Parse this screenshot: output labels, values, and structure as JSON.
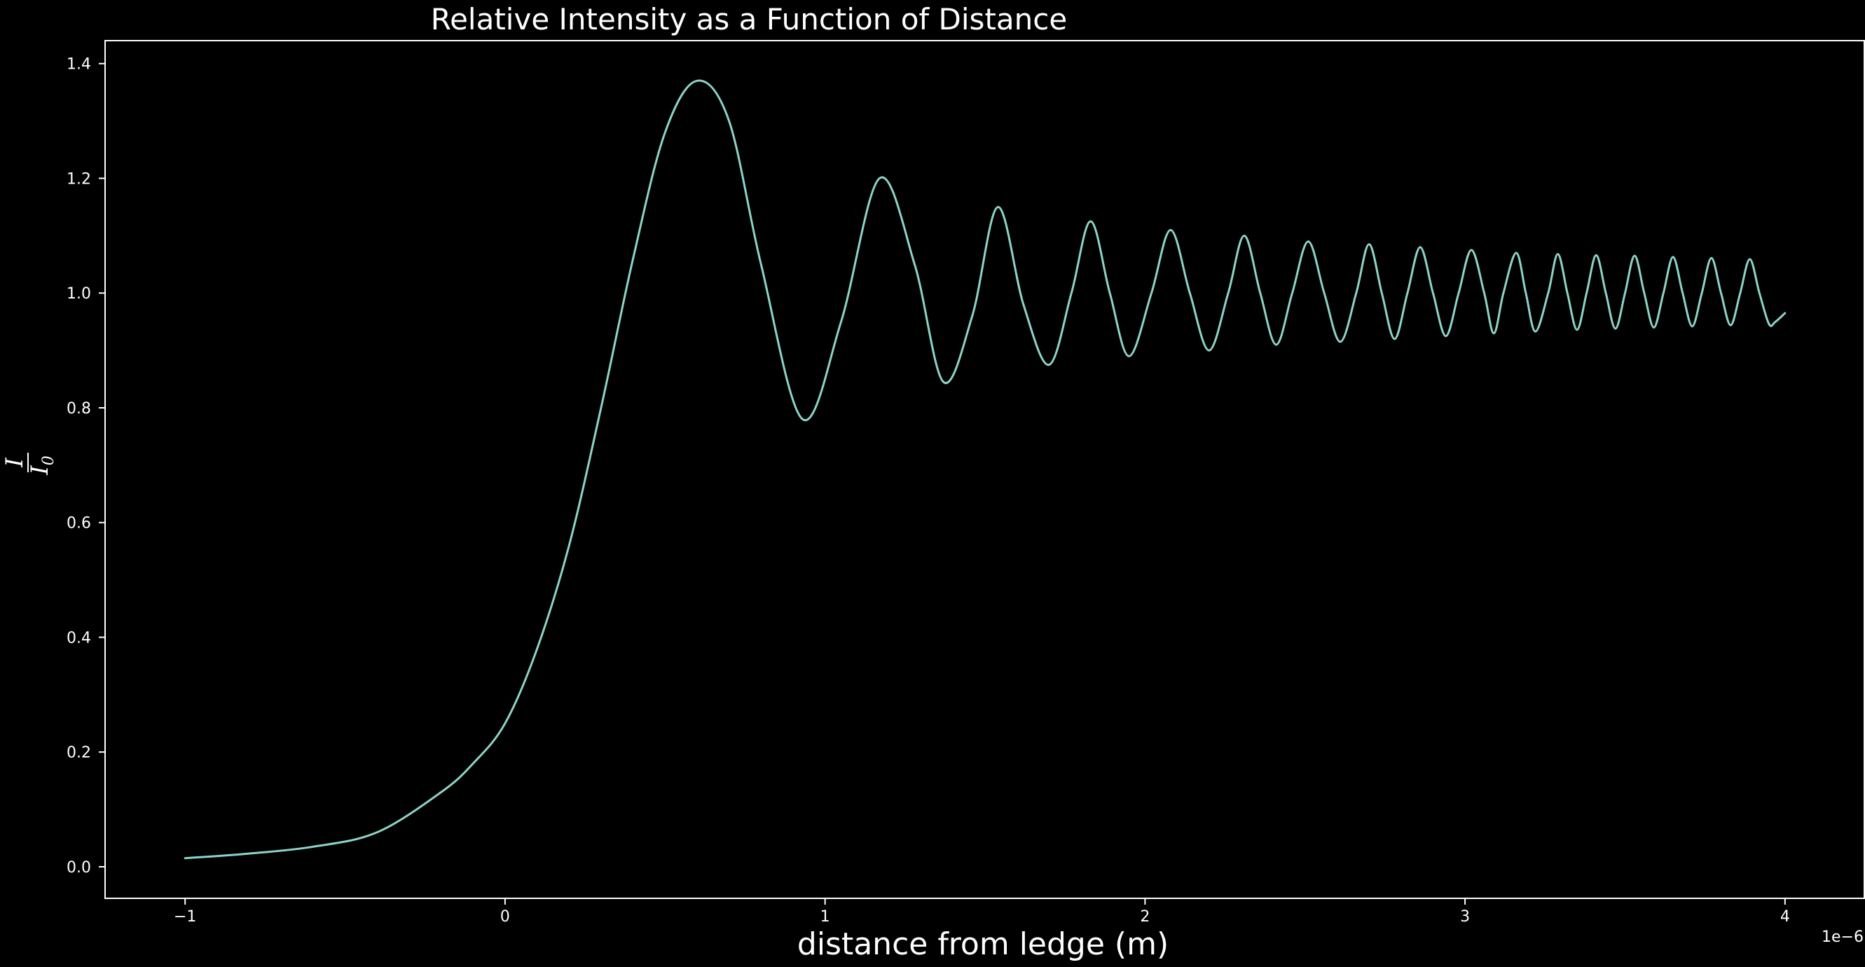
{
  "chart_data": {
    "type": "line",
    "title": "Relative Intensity as a Function of Distance",
    "xlabel": "distance from ledge (m)",
    "ylabel_numerator": "I",
    "ylabel_denominator": "I",
    "ylabel_denominator_subscript": "0",
    "x_offset_label": "1e−6",
    "xlim": [
      -1.25,
      4.25
    ],
    "ylim": [
      -0.055,
      1.44
    ],
    "xticks": [
      {
        "value": -1,
        "label": "−1"
      },
      {
        "value": 0,
        "label": "0"
      },
      {
        "value": 1,
        "label": "1"
      },
      {
        "value": 2,
        "label": "2"
      },
      {
        "value": 3,
        "label": "3"
      },
      {
        "value": 4,
        "label": "4"
      }
    ],
    "yticks": [
      {
        "value": 0.0,
        "label": "0.0"
      },
      {
        "value": 0.2,
        "label": "0.2"
      },
      {
        "value": 0.4,
        "label": "0.4"
      },
      {
        "value": 0.6,
        "label": "0.6"
      },
      {
        "value": 0.8,
        "label": "0.8"
      },
      {
        "value": 1.0,
        "label": "1.0"
      },
      {
        "value": 1.2,
        "label": "1.2"
      },
      {
        "value": 1.4,
        "label": "1.4"
      }
    ],
    "grid": false,
    "line_color": "#8dd3c7",
    "background_color": "#000000",
    "text_color": "#ffffff",
    "series": [
      {
        "x": [
          -1.0,
          -0.8,
          -0.6,
          -0.4,
          -0.2,
          -0.1,
          0.0,
          0.1,
          0.2,
          0.3,
          0.4,
          0.5,
          0.6,
          0.7,
          0.8,
          0.93,
          1.05,
          1.17,
          1.28,
          1.37,
          1.46,
          1.54,
          1.62,
          1.7,
          1.77,
          1.83,
          1.89,
          1.95,
          2.02,
          2.08,
          2.14,
          2.2,
          2.26,
          2.31,
          2.36,
          2.41,
          2.46,
          2.51,
          2.56,
          2.61,
          2.66,
          2.7,
          2.74,
          2.78,
          2.82,
          2.86,
          2.9,
          2.94,
          2.98,
          3.02,
          3.06,
          3.09,
          3.12,
          3.16,
          3.19,
          3.22,
          3.26,
          3.29,
          3.32,
          3.35,
          3.38,
          3.41,
          3.44,
          3.47,
          3.5,
          3.53,
          3.56,
          3.59,
          3.62,
          3.65,
          3.68,
          3.71,
          3.74,
          3.77,
          3.8,
          3.83,
          3.86,
          3.89,
          3.92,
          3.95,
          3.97,
          4.0
        ],
        "y": [
          0.015,
          0.023,
          0.035,
          0.06,
          0.13,
          0.18,
          0.25,
          0.38,
          0.56,
          0.8,
          1.06,
          1.28,
          1.37,
          1.3,
          1.05,
          0.78,
          0.95,
          1.2,
          1.05,
          0.845,
          0.96,
          1.15,
          0.98,
          0.875,
          1.0,
          1.125,
          1.0,
          0.89,
          1.0,
          1.11,
          1.0,
          0.9,
          1.0,
          1.1,
          1.0,
          0.91,
          1.0,
          1.09,
          1.0,
          0.915,
          1.0,
          1.085,
          1.0,
          0.92,
          1.0,
          1.08,
          1.0,
          0.925,
          1.0,
          1.075,
          1.0,
          0.93,
          1.0,
          1.07,
          1.0,
          0.933,
          1.0,
          1.068,
          1.0,
          0.936,
          1.0,
          1.066,
          1.0,
          0.938,
          1.0,
          1.065,
          1.0,
          0.94,
          1.0,
          1.063,
          1.0,
          0.942,
          1.0,
          1.061,
          1.0,
          0.944,
          1.0,
          1.059,
          1.0,
          0.946,
          0.95,
          0.965
        ]
      }
    ]
  }
}
